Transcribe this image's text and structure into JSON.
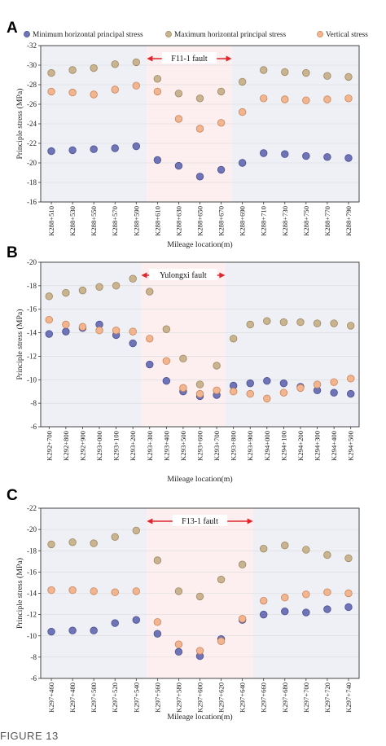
{
  "figure_caption": "FIGURE 13",
  "legend": {
    "min_label": "Minimum horizontal principal stress",
    "max_label": "Maximum horizontal principal stress",
    "vert_label": "Vertical stress"
  },
  "colors": {
    "min_fill": "#6f74b8",
    "max_fill": "#c9b48f",
    "vert_fill": "#f3b58f",
    "fault_arrow": "#e0262b",
    "fault_zone": "#fdeef0",
    "side_zone": "#eef0f6",
    "grid": "#d9d9d9"
  },
  "chart_data": [
    {
      "panel_label": "A",
      "type": "scatter",
      "fault_label": "F11-1 fault",
      "fault_range": [
        5,
        9
      ],
      "xlabel": "Mileage location(m)",
      "ylabel": "Principle stress (MPa)",
      "ylim": [
        -16,
        -32
      ],
      "yticks": [
        "-16",
        "-18",
        "-20",
        "-22",
        "-24",
        "-26",
        "-28",
        "-30",
        "-32"
      ],
      "categories": [
        "K288+510",
        "K288+530",
        "K288+550",
        "K288+570",
        "K288+590",
        "K288+610",
        "K288+630",
        "K288+650",
        "K288+670",
        "K288+690",
        "K288+710",
        "K288+730",
        "K288+750",
        "K288+770",
        "K288+790"
      ],
      "series": [
        {
          "name": "Minimum horizontal principal stress",
          "values": [
            -21.2,
            -21.3,
            -21.4,
            -21.5,
            -21.7,
            -20.3,
            -19.7,
            -18.6,
            -19.3,
            -20.0,
            -21.0,
            -20.9,
            -20.7,
            -20.6,
            -20.5
          ]
        },
        {
          "name": "Maximum horizontal principal stress",
          "values": [
            -29.2,
            -29.5,
            -29.7,
            -30.1,
            -30.3,
            -28.6,
            -27.1,
            -26.6,
            -27.3,
            -28.3,
            -29.5,
            -29.3,
            -29.2,
            -28.9,
            -28.8
          ]
        },
        {
          "name": "Vertical stress",
          "values": [
            -27.3,
            -27.2,
            -27.0,
            -27.5,
            -27.9,
            -27.3,
            -24.5,
            -23.5,
            -24.1,
            -25.2,
            -26.6,
            -26.5,
            -26.4,
            -26.5,
            -26.6
          ]
        }
      ]
    },
    {
      "panel_label": "B",
      "type": "scatter",
      "fault_label": "Yulongxi fault",
      "fault_range": [
        6,
        11
      ],
      "xlabel": "Mileage location(m)",
      "ylabel": "Principle stress (MPa)",
      "ylim": [
        -6,
        -20
      ],
      "yticks": [
        "-6",
        "-8",
        "-10",
        "-12",
        "-14",
        "-16",
        "-18",
        "-20"
      ],
      "categories": [
        "K292+700",
        "K292+800",
        "K292+900",
        "K293+000",
        "K293+100",
        "K293+200",
        "K293+300",
        "K293+400",
        "K293+500",
        "K293+600",
        "K293+700",
        "K293+800",
        "K293+900",
        "K294+000",
        "K294+100",
        "K294+200",
        "K294+300",
        "K294+400",
        "K294+500"
      ],
      "series": [
        {
          "name": "Minimum horizontal principal stress",
          "values": [
            -13.9,
            -14.1,
            -14.4,
            -14.7,
            -13.8,
            -13.1,
            -11.3,
            -9.9,
            -9.0,
            -8.6,
            -8.7,
            -9.5,
            -9.7,
            -9.9,
            -9.7,
            -9.4,
            -9.1,
            -8.9,
            -8.8
          ]
        },
        {
          "name": "Maximum horizontal principal stress",
          "values": [
            -17.1,
            -17.4,
            -17.6,
            -17.9,
            -18.0,
            -18.6,
            -17.5,
            -14.3,
            -11.8,
            -9.6,
            -11.2,
            -13.5,
            -14.7,
            -15.0,
            -14.9,
            -14.9,
            -14.8,
            -14.8,
            -14.6
          ]
        },
        {
          "name": "Vertical stress",
          "values": [
            -15.1,
            -14.7,
            -14.5,
            -14.2,
            -14.2,
            -14.1,
            -13.5,
            -11.6,
            -9.3,
            -8.8,
            -9.1,
            -9.0,
            -8.8,
            -8.4,
            -8.9,
            -9.3,
            -9.6,
            -9.8,
            -10.1
          ]
        }
      ]
    },
    {
      "panel_label": "C",
      "type": "scatter",
      "fault_label": "F13-1 fault",
      "fault_range": [
        5,
        10
      ],
      "xlabel": "Mileage location(m)",
      "ylabel": "Principle stress (MPa)",
      "ylim": [
        -6,
        -22
      ],
      "yticks": [
        "-6",
        "-8",
        "-10",
        "-12",
        "-14",
        "-16",
        "-18",
        "-20",
        "-22"
      ],
      "categories": [
        "K297+460",
        "K297+480",
        "K297+500",
        "K297+520",
        "K297+540",
        "K297+560",
        "K297+580",
        "K297+600",
        "K297+620",
        "K297+640",
        "K297+660",
        "K297+680",
        "K297+700",
        "K297+720",
        "K297+740"
      ],
      "series": [
        {
          "name": "Minimum horizontal principal stress",
          "values": [
            -10.4,
            -10.5,
            -10.5,
            -11.2,
            -11.5,
            -10.2,
            -8.5,
            -8.1,
            -9.7,
            -11.5,
            -12.0,
            -12.3,
            -12.2,
            -12.5,
            -12.7
          ]
        },
        {
          "name": "Maximum horizontal principal stress",
          "values": [
            -18.6,
            -18.8,
            -18.7,
            -19.3,
            -19.9,
            -17.1,
            -14.2,
            -13.7,
            -15.3,
            -16.7,
            -18.2,
            -18.5,
            -18.1,
            -17.6,
            -17.3
          ]
        },
        {
          "name": "Vertical stress",
          "values": [
            -14.3,
            -14.3,
            -14.2,
            -14.1,
            -14.2,
            -11.3,
            -9.2,
            -8.6,
            -9.5,
            -11.6,
            -13.3,
            -13.6,
            -13.9,
            -14.1,
            -14.0
          ]
        }
      ]
    }
  ]
}
